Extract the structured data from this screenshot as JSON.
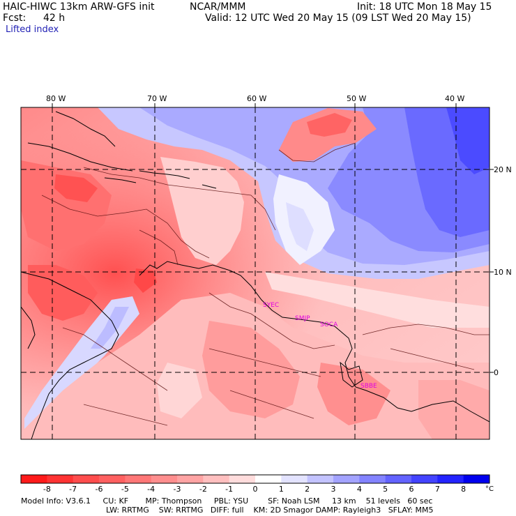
{
  "header": {
    "model_title": "HAIC-HIWC 13km ARW-GFS init",
    "center": "NCAR/MMM",
    "init": "Init: 18 UTC Mon 18 May 15",
    "fcst_label": "Fcst:",
    "fcst_value": "42 h",
    "valid": "Valid: 12 UTC Wed 20 May 15 (09 LST Wed 20 May 15)",
    "field_name": "Lifted index"
  },
  "map": {
    "lon_labels": [
      "80 W",
      "70 W",
      "60 W",
      "50 W",
      "40 W"
    ],
    "lat_labels": [
      "20 N",
      "10 N",
      "0"
    ],
    "stations": [
      "SYEC",
      "SMJP",
      "SOCA",
      "SBBE"
    ],
    "region": "Caribbean and northern South America"
  },
  "colorbar": {
    "labels": [
      "-8",
      "-7",
      "-6",
      "-5",
      "-4",
      "-3",
      "-2",
      "-1",
      "0",
      "1",
      "2",
      "3",
      "4",
      "5",
      "6",
      "7",
      "8"
    ],
    "unit": "°C",
    "colors": [
      "#ff1a1a",
      "#ff3333",
      "#ff4d4d",
      "#ff6060",
      "#ff7777",
      "#ff8e8e",
      "#ffa4a4",
      "#ffbfbf",
      "#ffdcdc",
      "#ffffff",
      "#e3e3ff",
      "#c3c3ff",
      "#a3a3ff",
      "#8383ff",
      "#6363ff",
      "#4343ff",
      "#2323ff",
      "#0000ee"
    ]
  },
  "footer": {
    "line1": "Model Info: V3.6.1     CU: KF       MP: Thompson     PBL: YSU        SF: Noah LSM     13 km    51 levels   60 sec",
    "line2": "LW: RRTMG    SW: RRTMG   DIFF: full    KM: 2D Smagor DAMP: Rayleigh3   SFLAY: MM5"
  }
}
